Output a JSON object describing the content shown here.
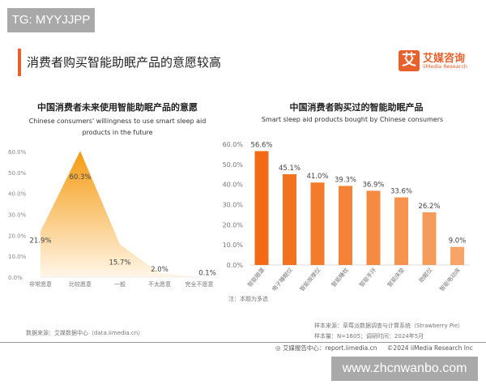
{
  "watermark_top": "TG: MYYJJPP",
  "watermark_bottom": "www.zhcnwanbo.com",
  "page_title": "消费者购买智能助眠产品的意愿较高",
  "logo": {
    "cn": "艾媒咨询",
    "en": "iiMedia Research",
    "glyph": "艾"
  },
  "colors": {
    "accent": "#e8602c",
    "area": "#f59a10",
    "bar_dark": "#f26a14",
    "bar_light": "#f7a466"
  },
  "chart_data": [
    {
      "type": "area",
      "title": "中国消费者未来使用智能助眠产品的意愿",
      "subtitle_line1": "Chinese consumers' willingness to use smart sleep aid",
      "subtitle_line2": "products in the future",
      "categories": [
        "非常愿意",
        "比较愿意",
        "一般",
        "不太愿意",
        "完全不愿意"
      ],
      "values": [
        21.9,
        60.3,
        15.7,
        2.0,
        0.1
      ],
      "labels": [
        "21.9%",
        "60.3%",
        "15.7%",
        "2.0%",
        "0.1%"
      ],
      "ylim": [
        0,
        60
      ],
      "yticks": [
        "0.0%",
        "10.0%",
        "20.0%",
        "30.0%",
        "40.0%",
        "50.0%",
        "60.0%"
      ]
    },
    {
      "type": "bar",
      "title": "中国消费者购买过的智能助眠产品",
      "subtitle": "Smart sleep aid products bought by Chinese consumers",
      "categories": [
        "智能眼罩",
        "电子睡眠仪",
        "智能按摩仪",
        "智能睡枕",
        "智能手环",
        "智能床垫",
        "助眠仪",
        "智能电动床"
      ],
      "values": [
        56.6,
        45.1,
        41.0,
        39.3,
        36.9,
        33.6,
        26.2,
        9.0
      ],
      "labels": [
        "56.6%",
        "45.1%",
        "41.0%",
        "39.3%",
        "36.9%",
        "33.6%",
        "26.2%",
        "9.0%"
      ],
      "ylim": [
        0,
        60
      ],
      "yticks": [
        "0.0%",
        "10.0%",
        "20.0%",
        "30.0%",
        "40.0%",
        "50.0%",
        "60.0%"
      ],
      "note": "注：本题为多选"
    }
  ],
  "footer": {
    "left_source": "数据来源：艾媒数据中心（data.iimedia.cn）",
    "sample_source": "样本来源：草莓派数据调查与计算系统（Strawberry Pie）",
    "sample_size": "样本量：N=1605；调研时间：2024年5月",
    "report_center": "艾媒报告中心：report.iimedia.cn",
    "copyright": "©2024  iiMedia Research Inc"
  }
}
